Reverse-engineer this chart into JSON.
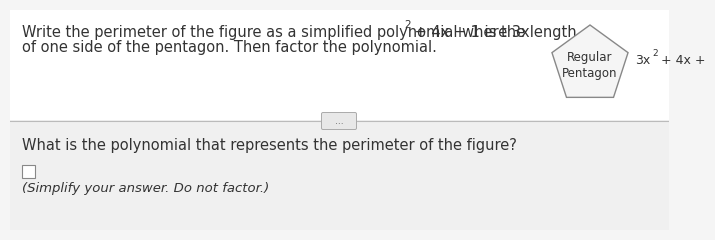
{
  "bg_color": "#f5f5f5",
  "text_color": "#333333",
  "line_color": "#bbbbbb",
  "pentagon_face_color": "#f5f5f5",
  "pentagon_edge_color": "#888888",
  "btn_face_color": "#e8e8e8",
  "btn_edge_color": "#aaaaaa",
  "box_face_color": "#ffffff",
  "box_edge_color": "#888888",
  "line1a": "Write the perimeter of the figure as a simplified polynomial where 3x",
  "line1_super": "2",
  "line1b": " + 4x + 1 is the length",
  "line2": "of one side of the pentagon. Then factor the polynomial.",
  "pent_label1": "Regular",
  "pent_label2": "Pentagon",
  "side_label_base": "3x",
  "side_label_super": "2",
  "side_label_end": " + 4x +",
  "dots": "...",
  "question": "What is the polynomial that represents the perimeter of the figure?",
  "instruction": "(Simplify your answer. Do not factor.)",
  "fs_main": 10.5,
  "fs_small": 7.5,
  "fs_pent": 8.5,
  "fs_side": 9.0,
  "fs_instr": 9.5
}
